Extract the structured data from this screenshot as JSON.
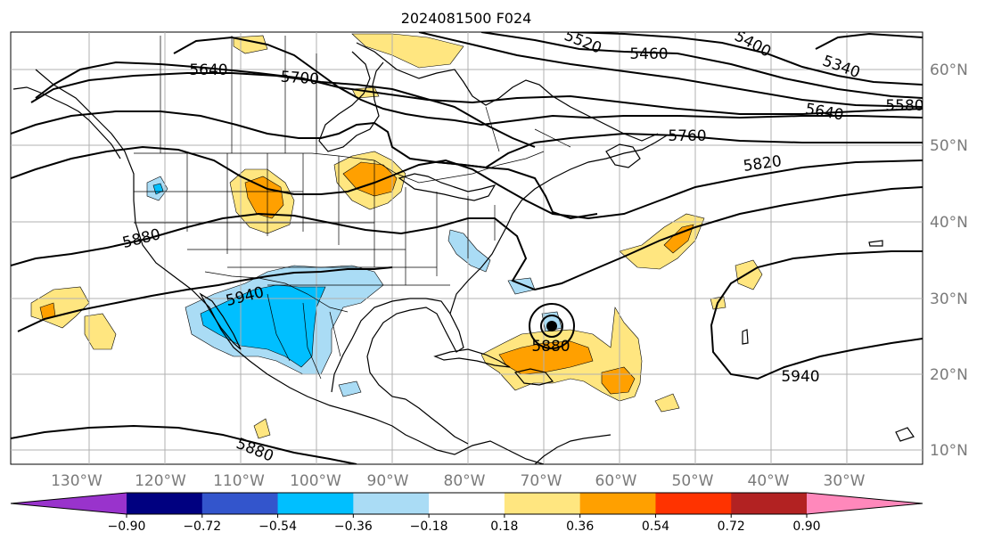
{
  "title": "2024081500 F024",
  "lon_labels": [
    "130°W",
    "120°W",
    "110°W",
    "100°W",
    "90°W",
    "80°W",
    "70°W",
    "60°W",
    "50°W",
    "40°W",
    "30°W"
  ],
  "lat_labels": [
    "60°N",
    "50°N",
    "40°N",
    "30°N",
    "20°N",
    "10°N"
  ],
  "contour_labels": [
    "5640",
    "5700",
    "5520",
    "5460",
    "5400",
    "5340",
    "5640",
    "5580",
    "5760",
    "5820",
    "5880",
    "5940",
    "5880",
    "5940",
    "5880"
  ],
  "colorbar": {
    "ticks": [
      "−0.90",
      "−0.72",
      "−0.54",
      "−0.36",
      "−0.18",
      "0.18",
      "0.36",
      "0.54",
      "0.72",
      "0.90"
    ],
    "colors": [
      "#9933cc",
      "#000080",
      "#3355cc",
      "#00bfff",
      "#aadcf5",
      "#ffffff",
      "#ffe680",
      "#ffa000",
      "#ff3300",
      "#b22222",
      "#ff88bb"
    ]
  }
}
